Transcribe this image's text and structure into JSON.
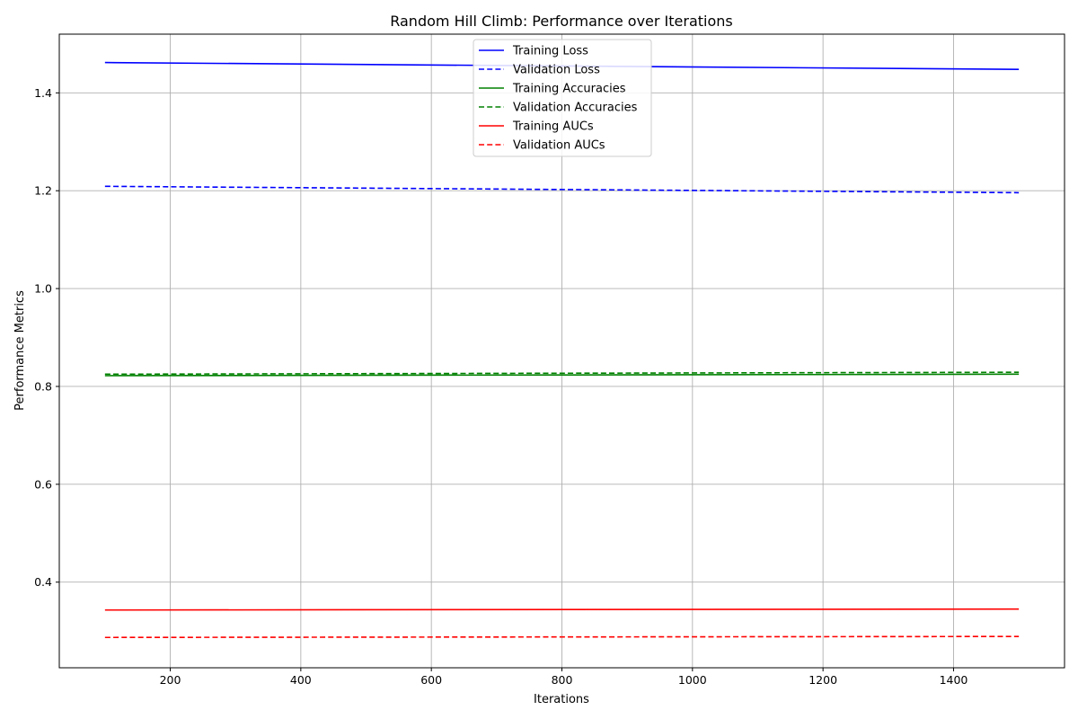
{
  "chart_data": {
    "type": "line",
    "title": "Random Hill Climb: Performance over Iterations",
    "xlabel": "Iterations",
    "ylabel": "Performance Metrics",
    "xlim": [
      30,
      1570
    ],
    "ylim": [
      0.225,
      1.52
    ],
    "xticks": [
      200,
      400,
      600,
      800,
      1000,
      1200,
      1400
    ],
    "yticks": [
      0.4,
      0.6,
      0.8,
      1.0,
      1.2,
      1.4
    ],
    "grid": true,
    "legend_position": "upper-center",
    "x": [
      100,
      1500
    ],
    "series": [
      {
        "name": "Training Loss",
        "color": "#0000ff",
        "dash": "solid",
        "values": [
          1.462,
          1.448
        ]
      },
      {
        "name": "Validation Loss",
        "color": "#0000ff",
        "dash": "dashed",
        "values": [
          1.209,
          1.196
        ]
      },
      {
        "name": "Training Accuracies",
        "color": "#008000",
        "dash": "solid",
        "values": [
          0.822,
          0.825
        ]
      },
      {
        "name": "Validation Accuracies",
        "color": "#008000",
        "dash": "dashed",
        "values": [
          0.825,
          0.829
        ]
      },
      {
        "name": "Training AUCs",
        "color": "#ff0000",
        "dash": "solid",
        "values": [
          0.343,
          0.345
        ]
      },
      {
        "name": "Validation AUCs",
        "color": "#ff0000",
        "dash": "dashed",
        "values": [
          0.287,
          0.289
        ]
      }
    ]
  }
}
